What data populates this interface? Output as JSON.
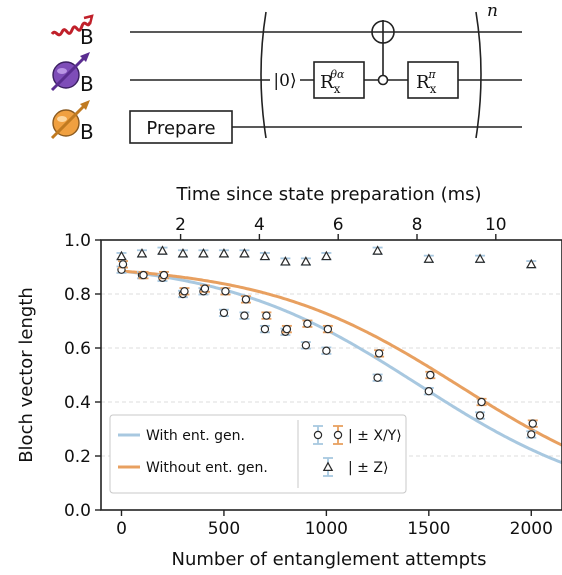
{
  "circuit": {
    "qubit_label": "B",
    "ket0": "|0⟩",
    "gate1": {
      "base": "R",
      "sub": "x",
      "sup": "θα"
    },
    "gate2": {
      "base": "R",
      "sub": "x",
      "sup": "π"
    },
    "prepare": "Prepare",
    "repeat": "n",
    "icon_colors": {
      "photon": "#c0202a",
      "purple": "#7e4db8",
      "orange": "#f0a040"
    }
  },
  "chart_data": {
    "type": "scatter",
    "title": "",
    "xlabel": "Number of entanglement attempts",
    "ylabel": "Bloch vector length",
    "top_xlabel": "Time since state preparation (ms)",
    "xlim": [
      -100,
      2150
    ],
    "ylim": [
      0.0,
      1.0
    ],
    "x_ticks": [
      0,
      500,
      1000,
      1500,
      2000
    ],
    "y_ticks": [
      0.0,
      0.2,
      0.4,
      0.6,
      0.8,
      1.0
    ],
    "y_tick_labels": [
      "0.0",
      "0.2",
      "0.4",
      "0.6",
      "0.8",
      "1.0"
    ],
    "top_axis": {
      "ticks_ms": [
        2,
        4,
        6,
        8,
        10
      ],
      "ms_at_x0": 0.5,
      "ms_per_attempt": 0.0052
    },
    "grid": "horizontal-dashed",
    "colors": {
      "with": "#a8c8e0",
      "without": "#e8a060",
      "marker": "#2a2a2a"
    },
    "legend": {
      "placement": "bottom-left",
      "with_label": "With ent. gen.",
      "without_label": "Without ent. gen.",
      "xy_label": "| ± X/Y⟩",
      "z_label": "| ± Z⟩"
    },
    "series": [
      {
        "name": "With ent. gen.",
        "marker": "circle",
        "x": [
          0,
          100,
          200,
          300,
          400,
          500,
          600,
          700,
          800,
          900,
          1000,
          1250,
          1500,
          1750,
          2000
        ],
        "values": [
          0.89,
          0.87,
          0.86,
          0.8,
          0.81,
          0.73,
          0.72,
          0.67,
          0.66,
          0.61,
          0.59,
          0.49,
          0.44,
          0.35,
          0.28
        ]
      },
      {
        "name": "Without ent. gen.",
        "marker": "circle",
        "x": [
          0,
          100,
          200,
          300,
          400,
          500,
          600,
          700,
          800,
          900,
          1000,
          1250,
          1500,
          1750,
          2000
        ],
        "values": [
          0.91,
          0.87,
          0.87,
          0.81,
          0.82,
          0.81,
          0.78,
          0.72,
          0.67,
          0.69,
          0.67,
          0.58,
          0.5,
          0.4,
          0.32
        ]
      },
      {
        "name": "| ± Z⟩",
        "marker": "triangle",
        "x": [
          0,
          100,
          200,
          300,
          400,
          500,
          600,
          700,
          800,
          900,
          1000,
          1250,
          1500,
          1750,
          2000
        ],
        "values": [
          0.94,
          0.95,
          0.96,
          0.95,
          0.95,
          0.95,
          0.95,
          0.94,
          0.92,
          0.92,
          0.94,
          0.96,
          0.93,
          0.93,
          0.91
        ]
      }
    ],
    "fits": [
      {
        "name": "With ent. gen.",
        "model": "sigmoid",
        "a": 0.885,
        "x0": 1450,
        "w": 480
      },
      {
        "name": "Without ent. gen.",
        "model": "sigmoid",
        "a": 0.885,
        "x0": 1655,
        "w": 480
      }
    ]
  }
}
